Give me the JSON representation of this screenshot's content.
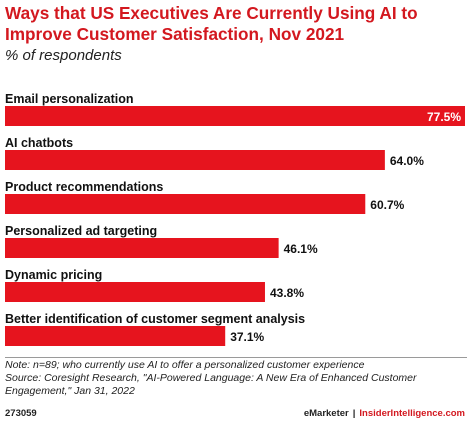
{
  "chart_data": {
    "type": "bar",
    "orientation": "horizontal",
    "title": "Ways that US Executives Are Currently Using AI to Improve Customer Satisfaction, Nov 2021",
    "subtitle": "% of respondents",
    "categories": [
      "Email personalization",
      "AI chatbots",
      "Product recommendations",
      "Personalized ad targeting",
      "Dynamic pricing",
      "Better identification of customer segment analysis"
    ],
    "values": [
      77.5,
      64.0,
      60.7,
      46.1,
      43.8,
      37.1
    ],
    "value_labels": [
      "77.5%",
      "64.0%",
      "60.7%",
      "46.1%",
      "43.8%",
      "37.1%"
    ],
    "xlim": [
      0,
      77.5
    ],
    "grid": false,
    "bar_color": "#e6141e",
    "inside_label_color": "#ffffff",
    "outside_label_color": "#111111"
  },
  "note": "Note: n=89; who currently use AI to offer a personalized customer experience",
  "source": "Source: Coresight Research, \"AI-Powered Language: A New Era of Enhanced Customer Engagement,\" Jan 31, 2022",
  "footer": {
    "id": "273059",
    "brand_left": "eMarketer",
    "separator": "|",
    "brand_right": "InsiderIntelligence.com"
  },
  "colors": {
    "accent": "#d3181f",
    "bar": "#e6141e"
  }
}
